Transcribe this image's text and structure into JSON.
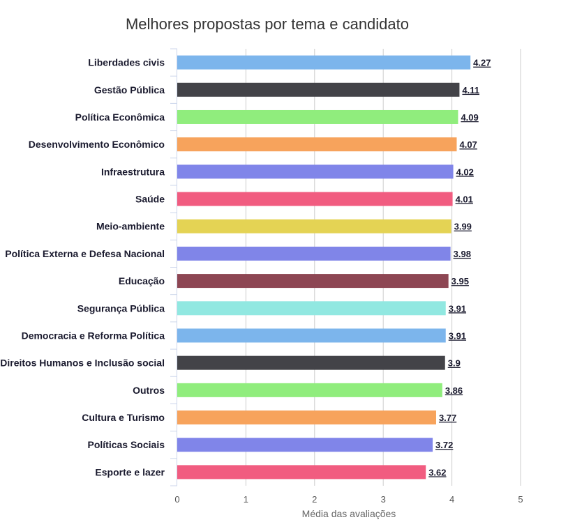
{
  "chart_data": {
    "type": "bar",
    "orientation": "horizontal",
    "title": "Melhores propostas por tema e candidato",
    "xlabel": "Média das avaliações",
    "ylabel": "",
    "xlim": [
      0,
      5
    ],
    "xticks": [
      0,
      1,
      2,
      3,
      4,
      5
    ],
    "grid": true,
    "categories": [
      "Liberdades civis",
      "Gestão Pública",
      "Política Econômica",
      "Desenvolvimento Econômico",
      "Infraestrutura",
      "Saúde",
      "Meio-ambiente",
      "Política Externa e Defesa Nacional",
      "Educação",
      "Segurança Pública",
      "Democracia e Reforma Política",
      "Direitos Humanos e Inclusão social",
      "Outros",
      "Cultura e Turismo",
      "Políticas Sociais",
      "Esporte e lazer"
    ],
    "values": [
      4.27,
      4.11,
      4.09,
      4.07,
      4.02,
      4.01,
      3.99,
      3.98,
      3.95,
      3.91,
      3.91,
      3.9,
      3.86,
      3.77,
      3.72,
      3.62
    ],
    "value_labels": [
      "4.27",
      "4.11",
      "4.09",
      "4.07",
      "4.02",
      "4.01",
      "3.99",
      "3.98",
      "3.95",
      "3.91",
      "3.91",
      "3.9",
      "3.86",
      "3.77",
      "3.72",
      "3.62"
    ],
    "colors": [
      "#7cb5ec",
      "#434348",
      "#90ed7d",
      "#f7a35c",
      "#8085e9",
      "#f15c80",
      "#e4d354",
      "#8085e8",
      "#8d4653",
      "#91e8e1",
      "#7cb5ec",
      "#434348",
      "#90ed7d",
      "#f7a35c",
      "#8085e9",
      "#f15c80"
    ]
  }
}
